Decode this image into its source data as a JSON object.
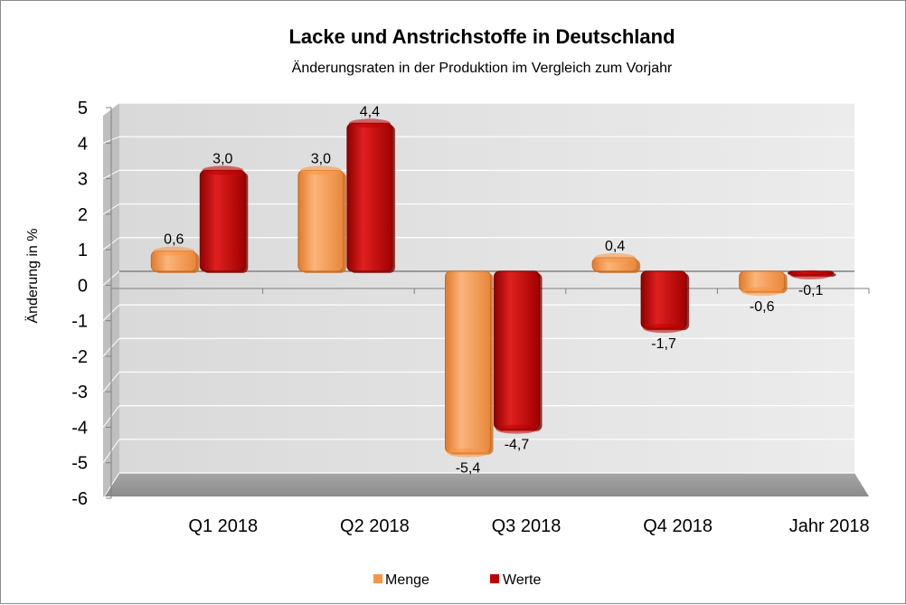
{
  "chart_data": {
    "type": "bar",
    "title": "Lacke und Anstrichstoffe in Deutschland",
    "subtitle": "Änderungsraten in der Produktion im Vergleich zum Vorjahr",
    "ylabel": "Änderung in %",
    "xlabel": "",
    "categories": [
      "Q1 2018",
      "Q2 2018",
      "Q3 2018",
      "Q4 2018",
      "Jahr 2018"
    ],
    "series": [
      {
        "name": "Menge",
        "color": "#f79646",
        "dark": "#c86a1e",
        "values": [
          0.6,
          3.0,
          -5.4,
          0.4,
          -0.6
        ],
        "labels": [
          "0,6",
          "3,0",
          "-5,4",
          "0,4",
          "-0,6"
        ]
      },
      {
        "name": "Werte",
        "color": "#c00000",
        "dark": "#7a0000",
        "values": [
          3.0,
          4.4,
          -4.7,
          -1.7,
          -0.1
        ],
        "labels": [
          "3,0",
          "4,4",
          "-4,7",
          "-1,7",
          "-0,1"
        ]
      }
    ],
    "ylim": [
      -6,
      5
    ],
    "yticks": [
      "5",
      "4",
      "3",
      "2",
      "1",
      "0",
      "-1",
      "-2",
      "-3",
      "-4",
      "-5",
      "-6"
    ],
    "grid": true,
    "legend": "bottom",
    "three_d": true
  }
}
